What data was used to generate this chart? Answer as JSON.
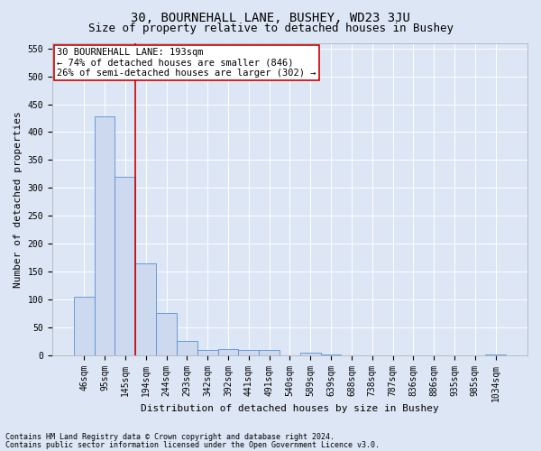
{
  "title1": "30, BOURNEHALL LANE, BUSHEY, WD23 3JU",
  "title2": "Size of property relative to detached houses in Bushey",
  "xlabel": "Distribution of detached houses by size in Bushey",
  "ylabel": "Number of detached properties",
  "categories": [
    "46sqm",
    "95sqm",
    "145sqm",
    "194sqm",
    "244sqm",
    "293sqm",
    "342sqm",
    "392sqm",
    "441sqm",
    "491sqm",
    "540sqm",
    "589sqm",
    "639sqm",
    "688sqm",
    "738sqm",
    "787sqm",
    "836sqm",
    "886sqm",
    "935sqm",
    "985sqm",
    "1034sqm"
  ],
  "values": [
    105,
    428,
    320,
    165,
    75,
    26,
    10,
    11,
    10,
    9,
    0,
    5,
    2,
    0,
    0,
    0,
    0,
    0,
    0,
    0,
    2
  ],
  "bar_color": "#ccd9ee",
  "bar_edge_color": "#5b8fd4",
  "background_color": "#dce6f5",
  "red_line_x": 2.5,
  "annotation_text": "30 BOURNEHALL LANE: 193sqm\n← 74% of detached houses are smaller (846)\n26% of semi-detached houses are larger (302) →",
  "annotation_box_facecolor": "white",
  "annotation_box_edge": "#cc0000",
  "ylim": [
    0,
    560
  ],
  "yticks": [
    0,
    50,
    100,
    150,
    200,
    250,
    300,
    350,
    400,
    450,
    500,
    550
  ],
  "footer1": "Contains HM Land Registry data © Crown copyright and database right 2024.",
  "footer2": "Contains public sector information licensed under the Open Government Licence v3.0.",
  "title1_fontsize": 10,
  "title2_fontsize": 9,
  "xlabel_fontsize": 8,
  "ylabel_fontsize": 8,
  "tick_fontsize": 7,
  "annotation_fontsize": 7.5,
  "footer_fontsize": 6
}
